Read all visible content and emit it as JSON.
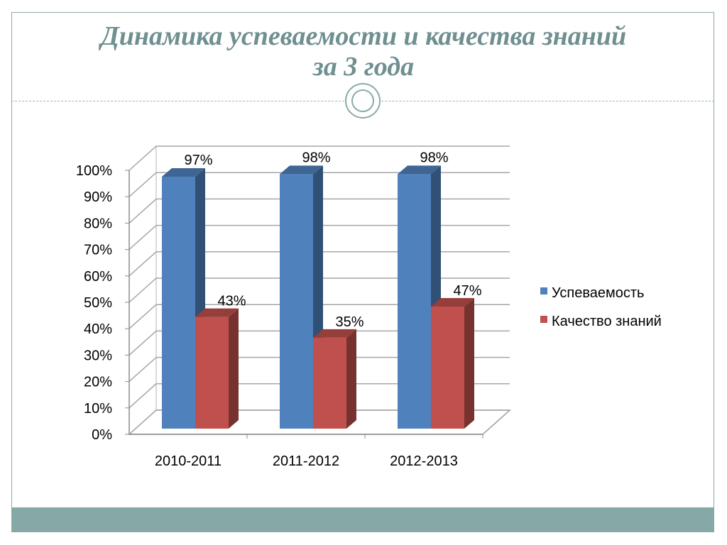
{
  "slide": {
    "title_line1": "Динамика успеваемости и качества знаний",
    "title_line2": "за 3 года",
    "accent": "#86a9a8"
  },
  "chart_data": {
    "type": "bar",
    "categories": [
      "2010-2011",
      "2011-2012",
      "2012-2013"
    ],
    "series": [
      {
        "name": "Успеваемость",
        "values": [
          97,
          98,
          98
        ],
        "labels": [
          "97%",
          "98%",
          "98%"
        ],
        "color": "#4f81bd"
      },
      {
        "name": "Качество знаний",
        "values": [
          43,
          35,
          47
        ],
        "labels": [
          "43%",
          "35%",
          "47%"
        ],
        "color": "#c0504d"
      }
    ],
    "ylim": [
      0,
      100
    ],
    "yticks": [
      "0%",
      "10%",
      "20%",
      "30%",
      "40%",
      "50%",
      "60%",
      "70%",
      "80%",
      "90%",
      "100%"
    ],
    "grid": true,
    "legend_position": "right",
    "style": "3d-clustered-column"
  }
}
